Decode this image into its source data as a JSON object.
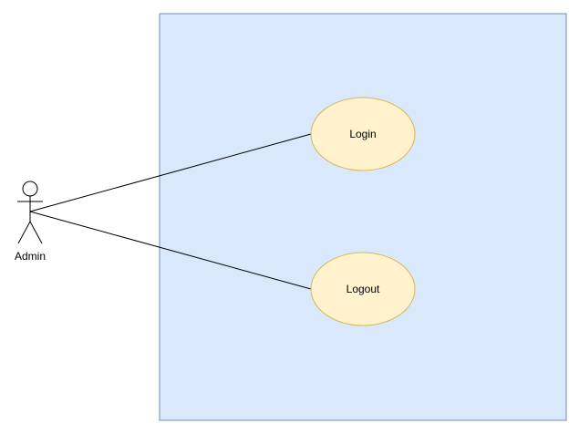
{
  "diagram": {
    "actor": {
      "name": "Admin"
    },
    "use_cases": [
      {
        "label": "Login"
      },
      {
        "label": "Logout"
      }
    ],
    "associations": [
      {
        "from": "Admin",
        "to": "Login"
      },
      {
        "from": "Admin",
        "to": "Logout"
      }
    ],
    "colors": {
      "system_fill": "#dae8fc",
      "system_stroke": "#6c8ebf",
      "use_case_fill": "#fff2cc",
      "use_case_stroke": "#d6b656",
      "line": "#000000"
    }
  }
}
